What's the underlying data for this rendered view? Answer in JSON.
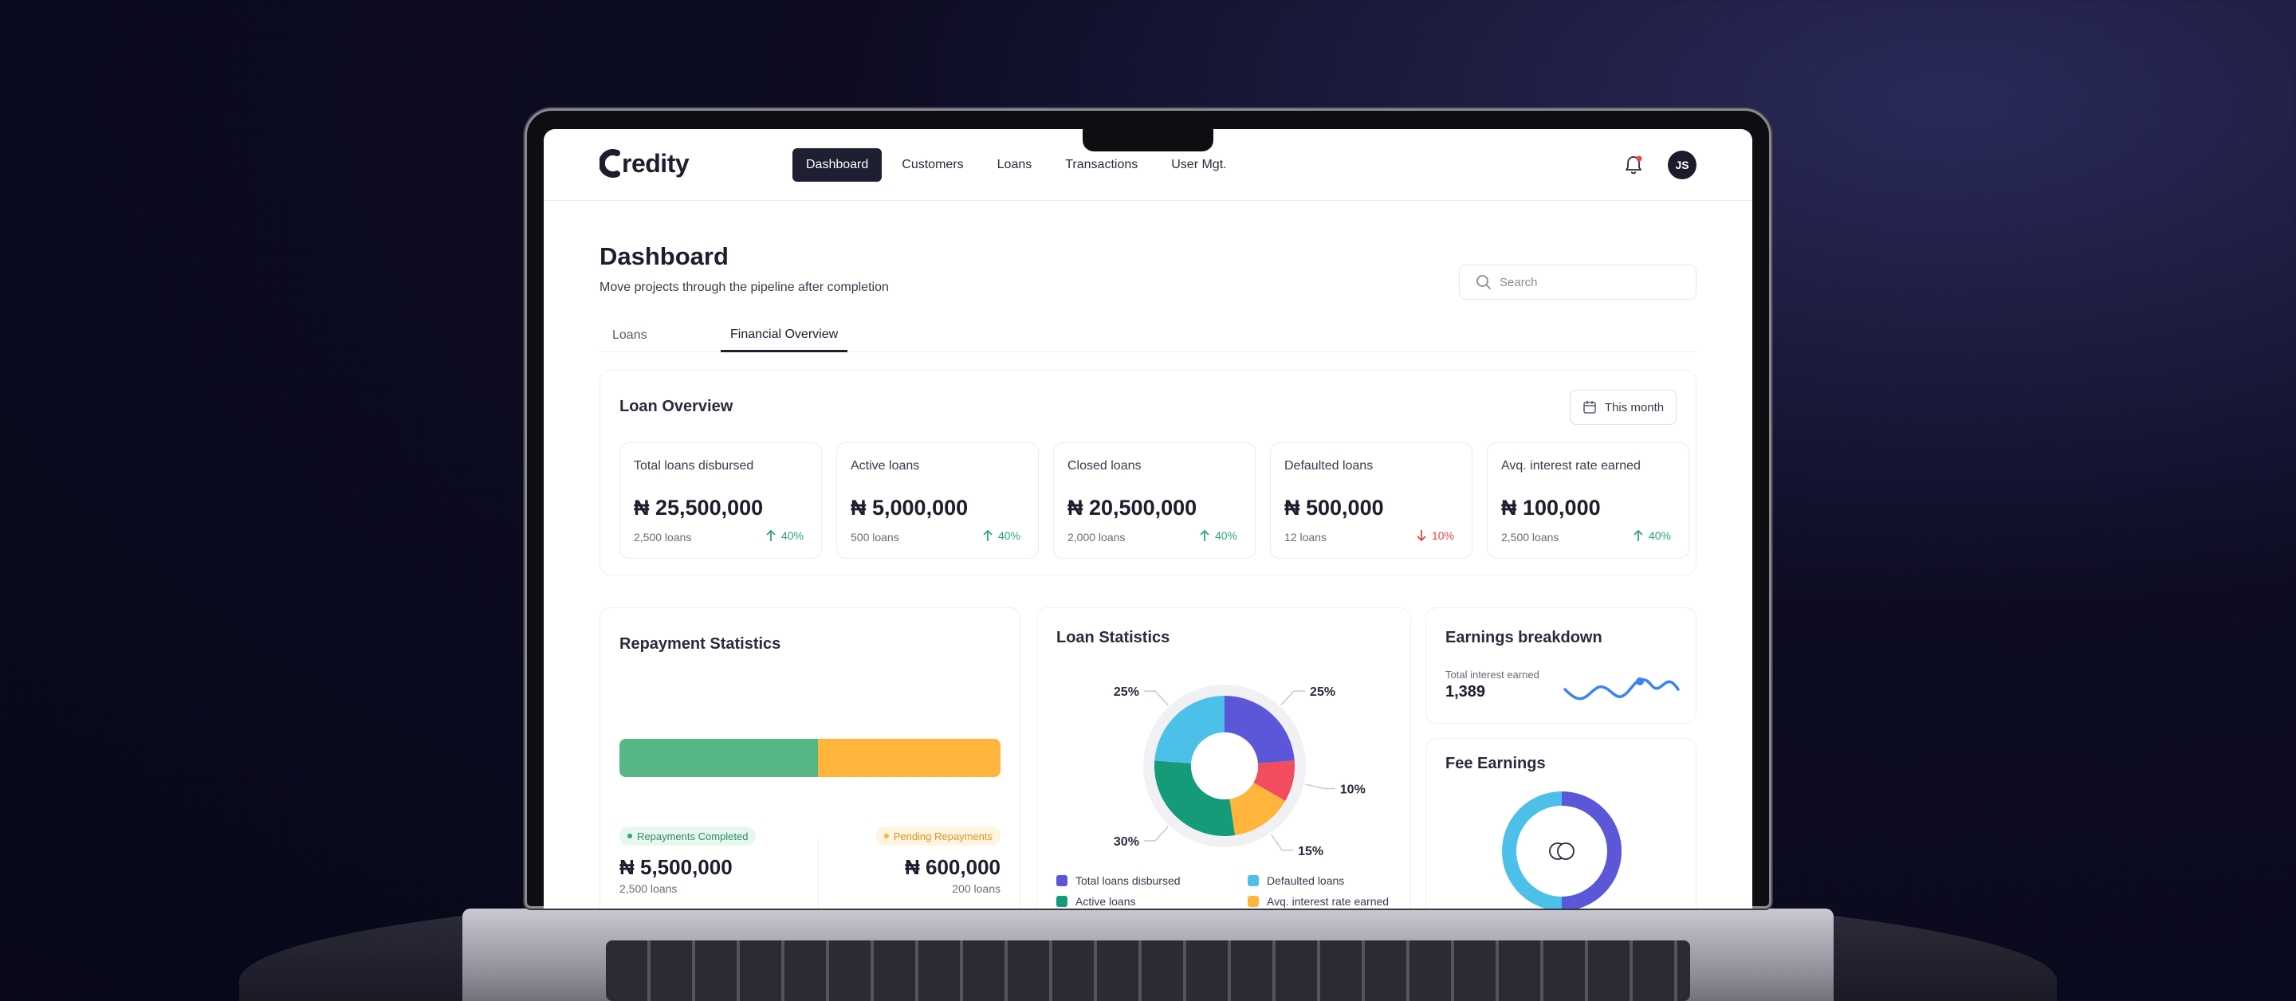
{
  "app": {
    "logo_text": "redity",
    "nav": [
      {
        "label": "Dashboard",
        "active": true
      },
      {
        "label": "Customers",
        "active": false
      },
      {
        "label": "Loans",
        "active": false
      },
      {
        "label": "Transactions",
        "active": false
      },
      {
        "label": "User Mgt.",
        "active": false
      }
    ],
    "avatar_initials": "JS"
  },
  "page": {
    "title": "Dashboard",
    "subtitle": "Move projects through the pipeline after completion",
    "search_placeholder": "Search",
    "tabs": [
      {
        "label": "Loans",
        "active": false
      },
      {
        "label": "Financial Overview",
        "active": true
      }
    ]
  },
  "loan_overview": {
    "title": "Loan Overview",
    "period_button": "This month",
    "stats": [
      {
        "label": "Total loans disbursed",
        "value": "₦ 25,500,000",
        "sub": "2,500 loans",
        "change": "40%",
        "direction": "up"
      },
      {
        "label": "Active loans",
        "value": "₦ 5,000,000",
        "sub": "500 loans",
        "change": "40%",
        "direction": "up"
      },
      {
        "label": "Closed loans",
        "value": "₦ 20,500,000",
        "sub": "2,000 loans",
        "change": "40%",
        "direction": "up"
      },
      {
        "label": "Defaulted loans",
        "value": "₦ 500,000",
        "sub": "12 loans",
        "change": "10%",
        "direction": "down"
      },
      {
        "label": "Avq. interest rate earned",
        "value": "₦ 100,000",
        "sub": "2,500 loans",
        "change": "40%",
        "direction": "up"
      }
    ]
  },
  "repayment": {
    "title": "Repayment Statistics",
    "completed_fraction": 0.52,
    "completed": {
      "label": "Repayments Completed",
      "amount": "₦ 5,500,000",
      "count": "2,500 loans"
    },
    "pending": {
      "label": "Pending Repayments",
      "amount": "₦ 600,000",
      "count": "200 loans"
    }
  },
  "loan_statistics": {
    "title": "Loan Statistics",
    "legend": [
      {
        "label": "Total loans disbursed",
        "color": "#5b57d8"
      },
      {
        "label": "Defaulted loans",
        "color": "#4cc0e8"
      },
      {
        "label": "Active loans",
        "color": "#159a7a"
      },
      {
        "label": "Avq. interest rate earned",
        "color": "#ffb53b"
      }
    ]
  },
  "chart_data": {
    "type": "pie",
    "labels": [
      "25%",
      "10%",
      "15%",
      "30%",
      "25%"
    ],
    "values": [
      25,
      10,
      15,
      30,
      25
    ],
    "colors": [
      "#5b57d8",
      "#f24d5e",
      "#ffb53b",
      "#159a7a",
      "#4cc0e8"
    ]
  },
  "earnings": {
    "title": "Earnings breakdown",
    "label": "Total interest earned",
    "value": "1,389"
  },
  "fees": {
    "title": "Fee Earnings",
    "fraction": 0.5
  }
}
